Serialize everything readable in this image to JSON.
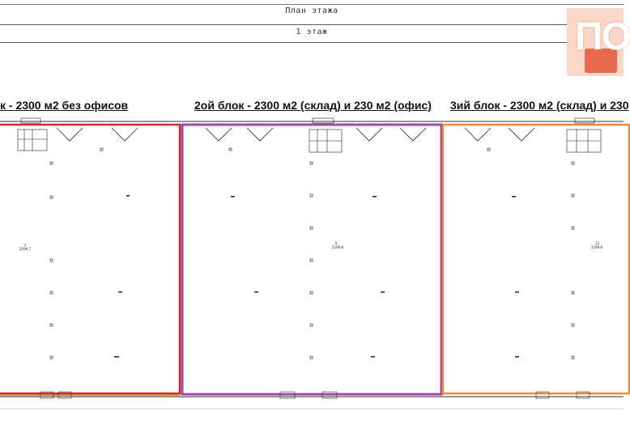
{
  "header": {
    "title": "План этажа",
    "floor": "1 этаж"
  },
  "blocks": [
    {
      "title": "к - 2300 м2 без офисов",
      "border_color": "#cc2b2b"
    },
    {
      "title": "2ой блок - 2300 м2 (склад) и 230 м2 (офис)",
      "border_color": "#9b4aa6"
    },
    {
      "title": "3ий блок - 2300 м2 (склад) и 230",
      "border_color": "#f08a3a"
    }
  ],
  "room_labels": [
    {
      "num": "1",
      "area": "2299,7"
    },
    {
      "num": "8",
      "area": "2299,8"
    },
    {
      "num": "12",
      "area": "2299,8"
    }
  ],
  "logo": {
    "text": "ПО"
  }
}
